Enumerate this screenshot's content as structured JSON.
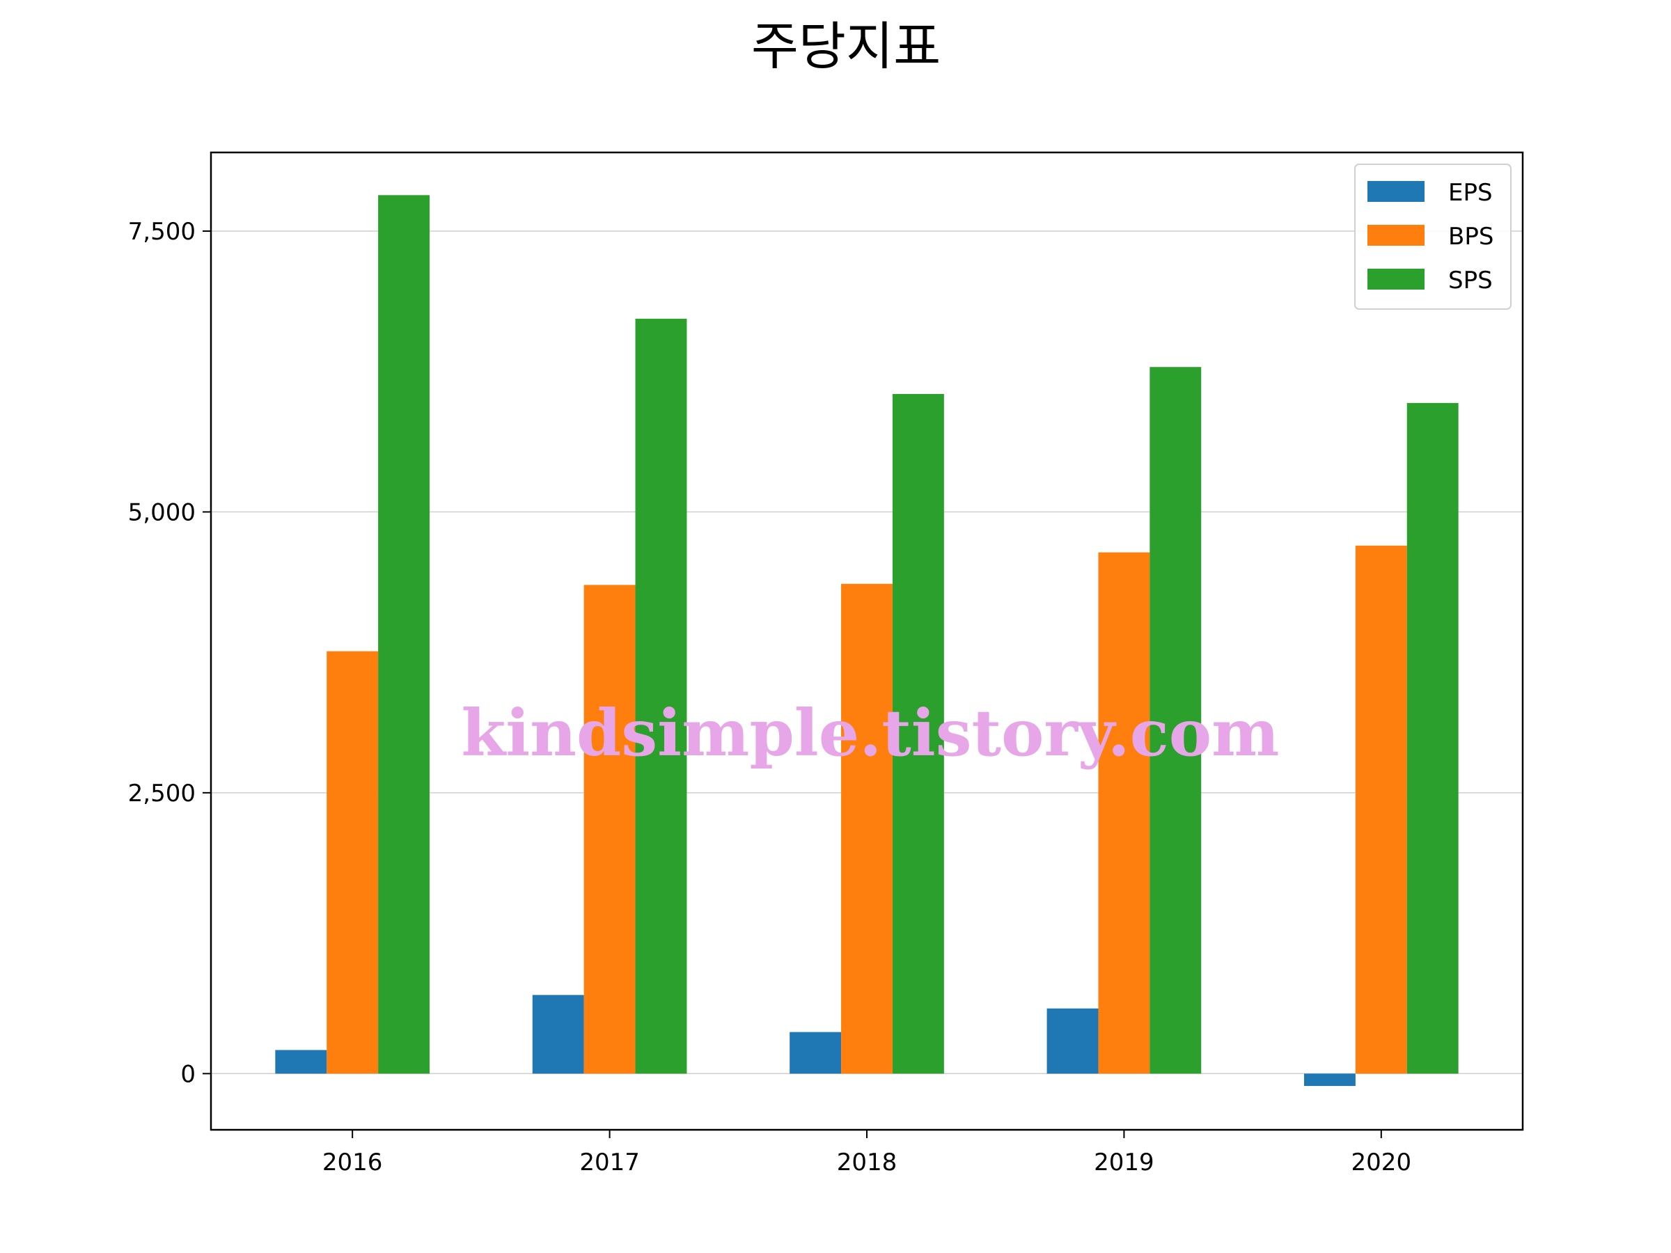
{
  "chart_data": {
    "type": "bar",
    "title": "주당지표",
    "xlabel": "",
    "ylabel": "",
    "categories": [
      "2016",
      "2017",
      "2018",
      "2019",
      "2020"
    ],
    "series": [
      {
        "name": "EPS",
        "color": "#1f77b4",
        "values": [
          210,
          700,
          370,
          580,
          -110
        ]
      },
      {
        "name": "BPS",
        "color": "#ff7f0e",
        "values": [
          3760,
          4350,
          4360,
          4640,
          4700
        ]
      },
      {
        "name": "SPS",
        "color": "#2ca02c",
        "values": [
          7820,
          6720,
          6050,
          6290,
          5970
        ]
      }
    ],
    "ylim": [
      -500,
      8200
    ],
    "yticks": [
      0,
      2500,
      5000,
      7500
    ],
    "ytick_labels": [
      "0",
      "2,500",
      "5,000",
      "7,500"
    ],
    "grid": "horizontal",
    "legend_position": "top-right"
  },
  "watermark": "kindsimple.tistory.com"
}
